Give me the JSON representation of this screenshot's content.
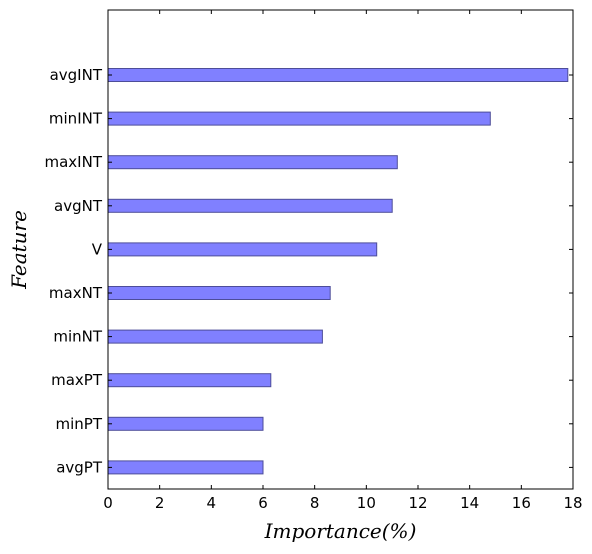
{
  "chart_data": {
    "type": "bar",
    "orientation": "horizontal",
    "categories": [
      "avgINT",
      "minINT",
      "maxINT",
      "avgNT",
      "V",
      "maxNT",
      "minNT",
      "maxPT",
      "minPT",
      "avgPT"
    ],
    "values": [
      17.8,
      14.8,
      11.2,
      11.0,
      10.4,
      8.6,
      8.3,
      6.3,
      6.0,
      6.0
    ],
    "title": "",
    "xlabel": "Importance(%)",
    "ylabel": "Feature",
    "xlim": [
      0,
      18
    ],
    "xticks": [
      "0",
      "2",
      "4",
      "6",
      "8",
      "10",
      "12",
      "14",
      "16",
      "18"
    ],
    "grid": false,
    "legend": "none",
    "colors": {
      "bar_fill": "#8080ff",
      "bar_edge": "#4d4d99",
      "axis": "#000000"
    }
  }
}
